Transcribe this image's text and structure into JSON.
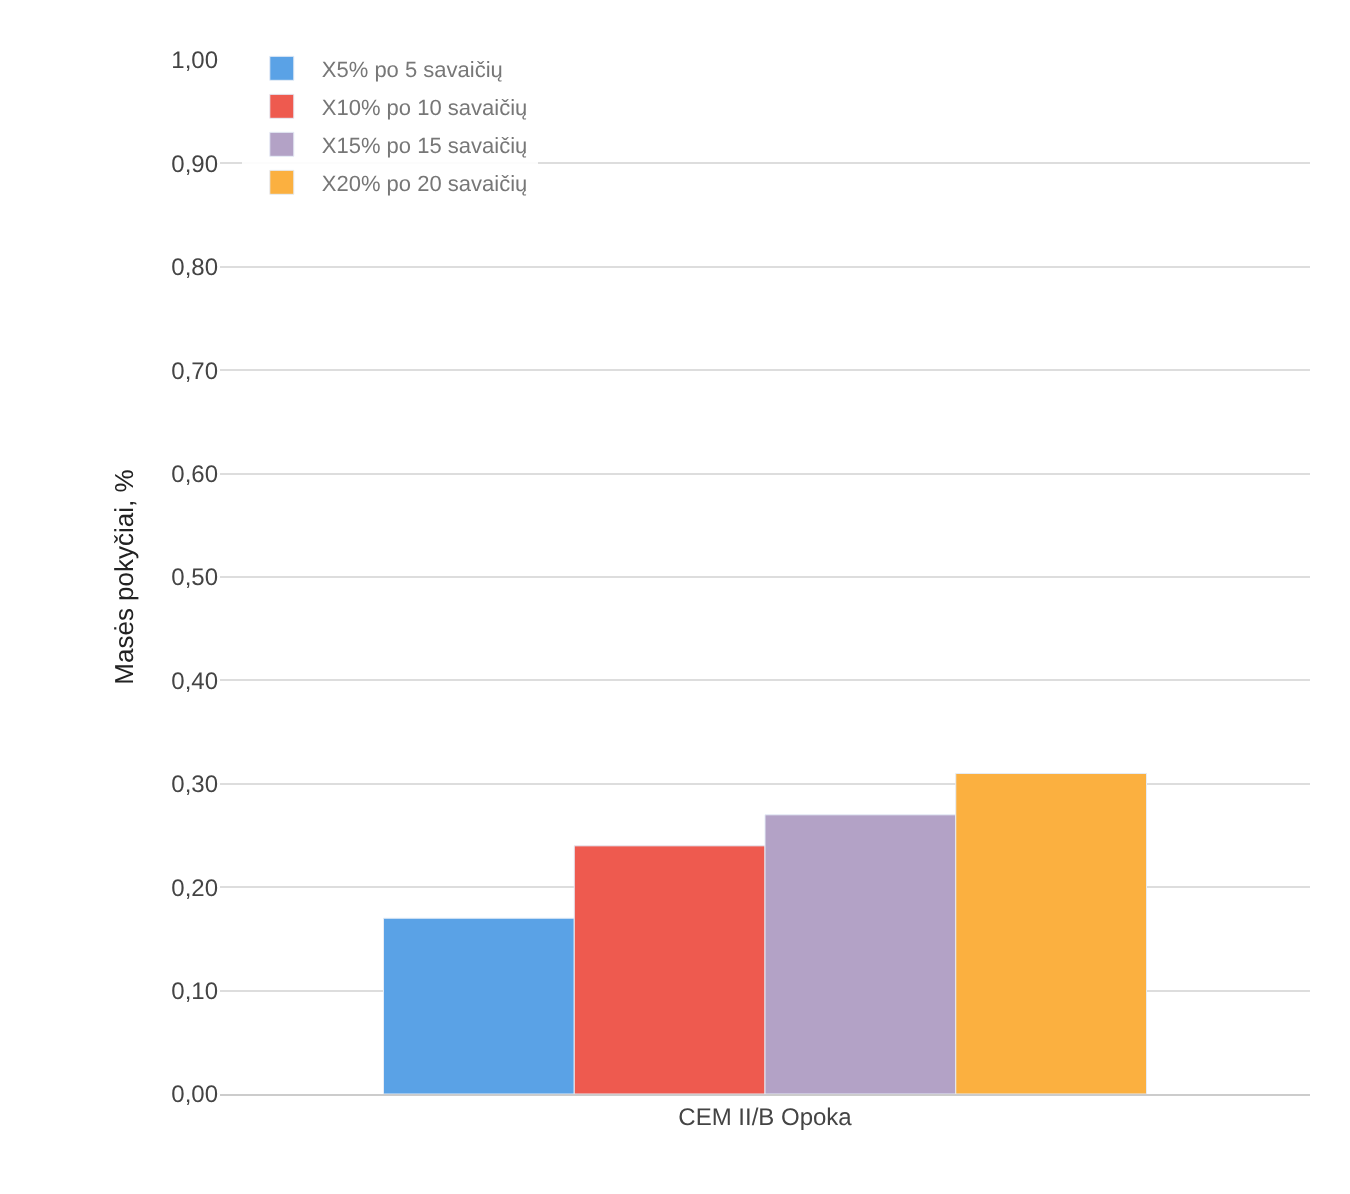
{
  "chart_data": {
    "type": "bar",
    "categories": [
      "CEM II/B Opoka"
    ],
    "ylabel": "Masės pokyčiai, %",
    "series": [
      {
        "name": "X5% po 5 savaičių",
        "color": "#5aa2e6",
        "values": [
          0.17
        ]
      },
      {
        "name": "X10% po 10 savaičių",
        "color": "#ee5a4f",
        "values": [
          0.24
        ]
      },
      {
        "name": "X15% po 15 savaičių",
        "color": "#b3a2c6",
        "values": [
          0.27
        ]
      },
      {
        "name": "X20% po 20 savaičių",
        "color": "#fbb040",
        "values": [
          0.31
        ]
      }
    ],
    "ylim": [
      0,
      1
    ],
    "yticks": [
      {
        "value": 0,
        "label": "0,00"
      },
      {
        "value": 0.1,
        "label": "0,10"
      },
      {
        "value": 0.2,
        "label": "0,20"
      },
      {
        "value": 0.3,
        "label": "0,30"
      },
      {
        "value": 0.4,
        "label": "0,40"
      },
      {
        "value": 0.5,
        "label": "0,50"
      },
      {
        "value": 0.6,
        "label": "0,60"
      },
      {
        "value": 0.7,
        "label": "0,70"
      },
      {
        "value": 0.8,
        "label": "0,80"
      },
      {
        "value": 0.9,
        "label": "0,90"
      },
      {
        "value": 1,
        "label": "1,00"
      }
    ],
    "grid": "y",
    "legend": "top left"
  }
}
